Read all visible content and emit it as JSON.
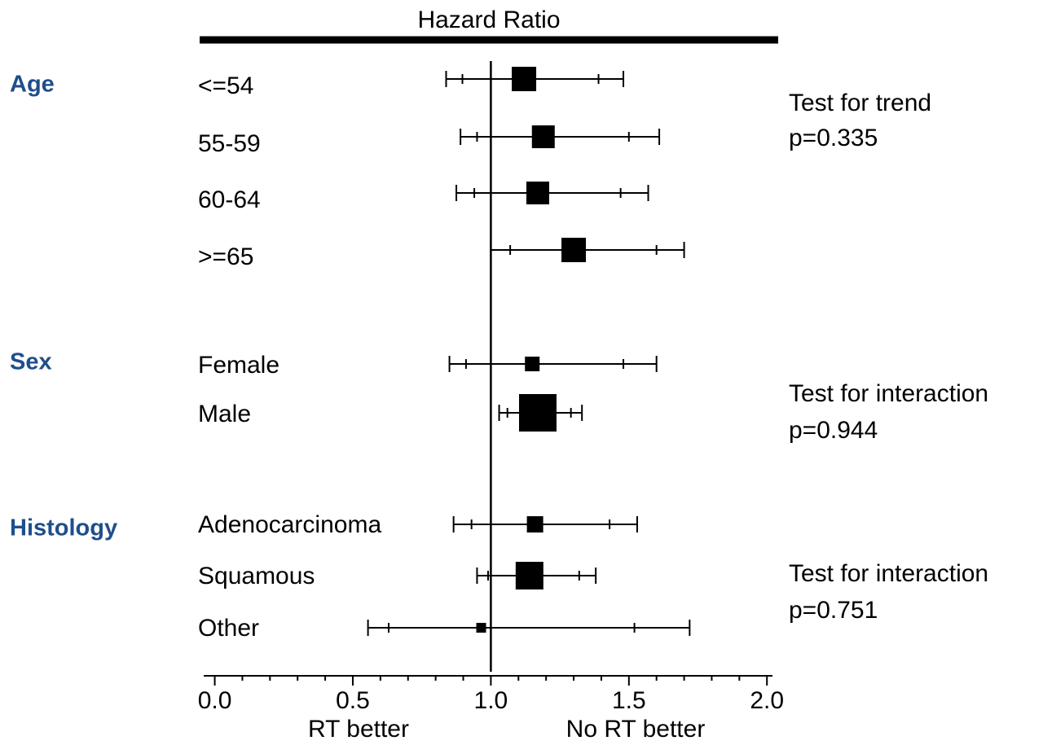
{
  "chart_data": {
    "type": "forest",
    "title": "Hazard Ratio",
    "color": "#000000",
    "group_color": "#1f4e8c",
    "groups": [
      {
        "name": "Age",
        "test": [
          "Test for trend",
          "p=0.335"
        ],
        "rows": [
          {
            "label": "<=54",
            "estimate": 1.12,
            "ci": [
              0.838,
              1.48
            ],
            "inner": [
              0.897,
              1.39
            ],
            "weight": 30
          },
          {
            "label": "55-59",
            "estimate": 1.19,
            "ci": [
              0.89,
              1.61
            ],
            "inner": [
              0.95,
              1.5
            ],
            "weight": 28
          },
          {
            "label": "60-64",
            "estimate": 1.17,
            "ci": [
              0.875,
              1.57
            ],
            "inner": [
              0.94,
              1.47
            ],
            "weight": 28
          },
          {
            "label": ">=65",
            "estimate": 1.3,
            "ci": [
              1.0,
              1.7
            ],
            "inner": [
              1.07,
              1.6
            ],
            "weight": 30
          }
        ]
      },
      {
        "name": "Sex",
        "test": [
          "Test for interaction",
          "p=0.944"
        ],
        "rows": [
          {
            "label": "Female",
            "estimate": 1.15,
            "ci": [
              0.85,
              1.6
            ],
            "inner": [
              0.91,
              1.48
            ],
            "weight": 18
          },
          {
            "label": "Male",
            "estimate": 1.17,
            "ci": [
              1.03,
              1.33
            ],
            "inner": [
              1.06,
              1.29
            ],
            "weight": 46
          }
        ]
      },
      {
        "name": "Histology",
        "test": [
          "Test for interaction",
          "p=0.751"
        ],
        "rows": [
          {
            "label": "Adenocarcinoma",
            "estimate": 1.16,
            "ci": [
              0.865,
              1.53
            ],
            "inner": [
              0.93,
              1.43
            ],
            "weight": 20
          },
          {
            "label": "Squamous",
            "estimate": 1.14,
            "ci": [
              0.95,
              1.38
            ],
            "inner": [
              0.99,
              1.32
            ],
            "weight": 34
          },
          {
            "label": "Other",
            "estimate": 0.965,
            "ci": [
              0.555,
              1.72
            ],
            "inner": [
              0.63,
              1.52
            ],
            "weight": 12
          }
        ]
      }
    ],
    "reference_line": 1,
    "xlim": [
      -0.04,
      2.02
    ],
    "xticks": [
      {
        "value": 0,
        "label": "0.0"
      },
      {
        "value": 0.5,
        "label": "0.5"
      },
      {
        "value": 1,
        "label": "1.0"
      },
      {
        "value": 1.5,
        "label": "1.5"
      },
      {
        "value": 2,
        "label": "2.0"
      }
    ],
    "minor_xticks": [
      0.1,
      0.2,
      0.3,
      0.4,
      0.6,
      0.7,
      0.8,
      0.9,
      1.1,
      1.2,
      1.3,
      1.4,
      1.6,
      1.7,
      1.8,
      1.9
    ],
    "x_direction_labels": [
      "RT better",
      "No RT better"
    ]
  }
}
